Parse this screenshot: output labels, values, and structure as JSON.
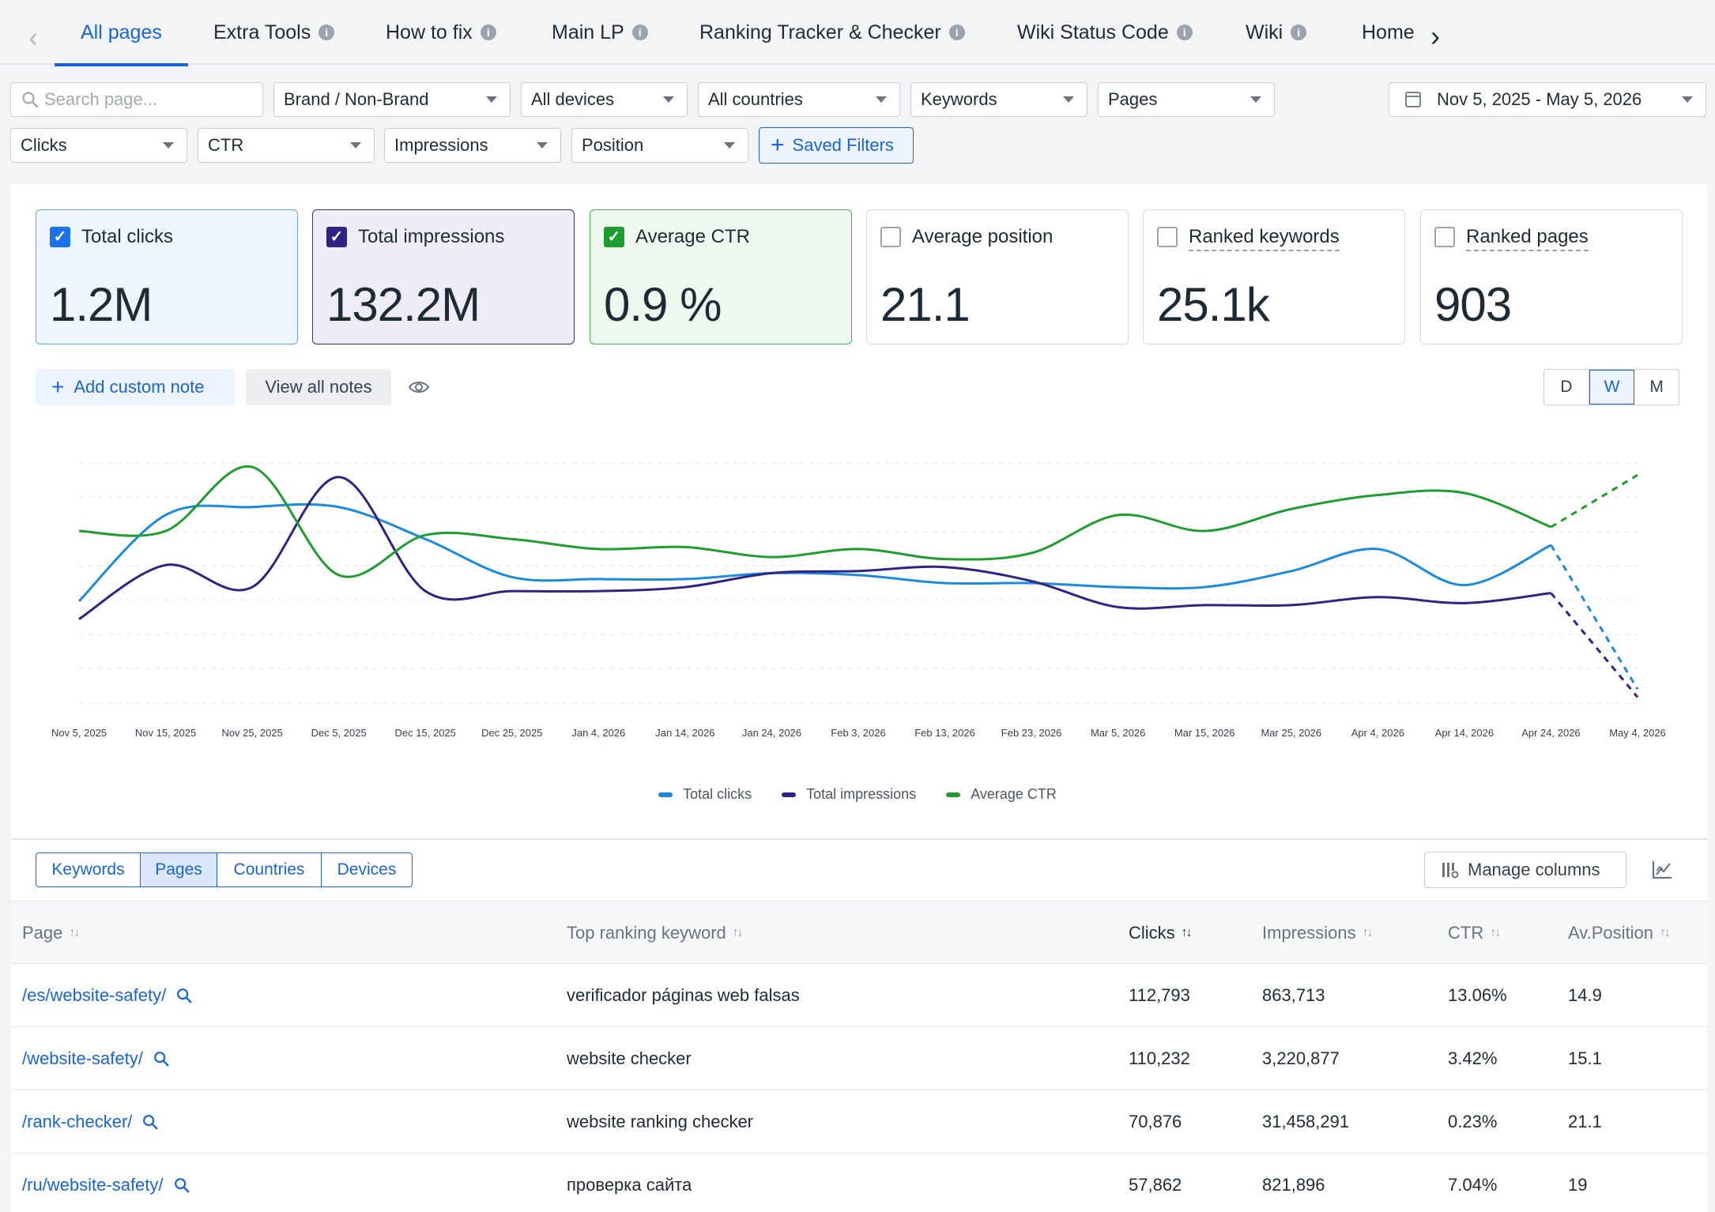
{
  "tabs": [
    {
      "label": "All pages",
      "active": true,
      "info": false
    },
    {
      "label": "Extra Tools",
      "info": true
    },
    {
      "label": "How to fix",
      "info": true
    },
    {
      "label": "Main LP",
      "info": true
    },
    {
      "label": "Ranking Tracker & Checker",
      "info": true
    },
    {
      "label": "Wiki Status Code",
      "info": true
    },
    {
      "label": "Wiki",
      "info": true
    },
    {
      "label": "Home",
      "info": false
    }
  ],
  "filters": {
    "search_placeholder": "Search page...",
    "brand": "Brand / Non-Brand",
    "devices": "All devices",
    "countries": "All countries",
    "keywords": "Keywords",
    "pages": "Pages",
    "date_range": "Nov 5, 2025 - May 5, 2026",
    "clicks": "Clicks",
    "ctr": "CTR",
    "impressions": "Impressions",
    "position": "Position",
    "saved_filters": "Saved Filters"
  },
  "kpis": [
    {
      "label": "Total clicks",
      "value": "1.2M",
      "checked": true,
      "color": "#1a73e8",
      "bg": "#eef5ff",
      "border": "#6aa2e8"
    },
    {
      "label": "Total impressions",
      "value": "132.2M",
      "checked": true,
      "color": "#2e2483",
      "bg": "#eeedf7",
      "border": "#3b2e8f"
    },
    {
      "label": "Average CTR",
      "value": "0.9 %",
      "checked": true,
      "color": "#1a9f2e",
      "bg": "#eef8ef",
      "border": "#49b45a"
    },
    {
      "label": "Average position",
      "value": "21.1",
      "checked": false
    },
    {
      "label": "Ranked keywords",
      "value": "25.1k",
      "checked": false
    },
    {
      "label": "Ranked pages",
      "value": "903",
      "checked": false
    }
  ],
  "notes": {
    "add": "Add custom note",
    "view_all": "View all notes"
  },
  "granularity": {
    "options": [
      "D",
      "W",
      "M"
    ],
    "selected": "W"
  },
  "chart_data": {
    "type": "line",
    "x": [
      "Nov 5, 2025",
      "Nov 15, 2025",
      "Nov 25, 2025",
      "Dec 5, 2025",
      "Dec 15, 2025",
      "Dec 25, 2025",
      "Jan 4, 2026",
      "Jan 14, 2026",
      "Jan 24, 2026",
      "Feb 3, 2026",
      "Feb 13, 2026",
      "Feb 23, 2026",
      "Mar 5, 2026",
      "Mar 15, 2026",
      "Mar 25, 2026",
      "Apr 4, 2026",
      "Apr 14, 2026",
      "Apr 24, 2026",
      "May 4, 2026"
    ],
    "series": [
      {
        "name": "Total clicks",
        "color": "#1a8ae0",
        "values": [
          31,
          74,
          78,
          78,
          62,
          43,
          42,
          42,
          45,
          44,
          40,
          40,
          38,
          38,
          46,
          57,
          39,
          59,
          -13
        ],
        "forecast_from": 18
      },
      {
        "name": "Total impressions",
        "color": "#2e2483",
        "values": [
          22,
          49,
          38,
          93,
          36,
          36,
          36,
          38,
          45,
          46,
          48,
          41,
          28,
          29,
          29,
          33,
          30,
          35,
          -17
        ],
        "forecast_from": 18
      },
      {
        "name": "Average CTR",
        "color": "#1f9d2f",
        "values": [
          66,
          66,
          98,
          44,
          64,
          62,
          57,
          58,
          53,
          57,
          52,
          55,
          74,
          66,
          77,
          84,
          85,
          68,
          94
        ],
        "forecast_from": 18
      }
    ],
    "grid": true,
    "legend": "bottom-center"
  },
  "table_tabs": {
    "items": [
      "Keywords",
      "Pages",
      "Countries",
      "Devices"
    ],
    "selected": "Pages"
  },
  "manage_columns": "Manage columns",
  "table": {
    "headers": {
      "page": "Page",
      "keyword": "Top ranking keyword",
      "clicks": "Clicks",
      "impressions": "Impressions",
      "ctr": "CTR",
      "position": "Av.Position"
    },
    "rows": [
      {
        "page": "/es/website-safety/",
        "keyword": "verificador páginas web falsas",
        "clicks": "112,793",
        "impressions": "863,713",
        "ctr": "13.06%",
        "position": "14.9"
      },
      {
        "page": "/website-safety/",
        "keyword": "website checker",
        "clicks": "110,232",
        "impressions": "3,220,877",
        "ctr": "3.42%",
        "position": "15.1"
      },
      {
        "page": "/rank-checker/",
        "keyword": "website ranking checker",
        "clicks": "70,876",
        "impressions": "31,458,291",
        "ctr": "0.23%",
        "position": "21.1"
      },
      {
        "page": "/ru/website-safety/",
        "keyword": "проверка сайта",
        "clicks": "57,862",
        "impressions": "821,896",
        "ctr": "7.04%",
        "position": "19"
      }
    ]
  }
}
